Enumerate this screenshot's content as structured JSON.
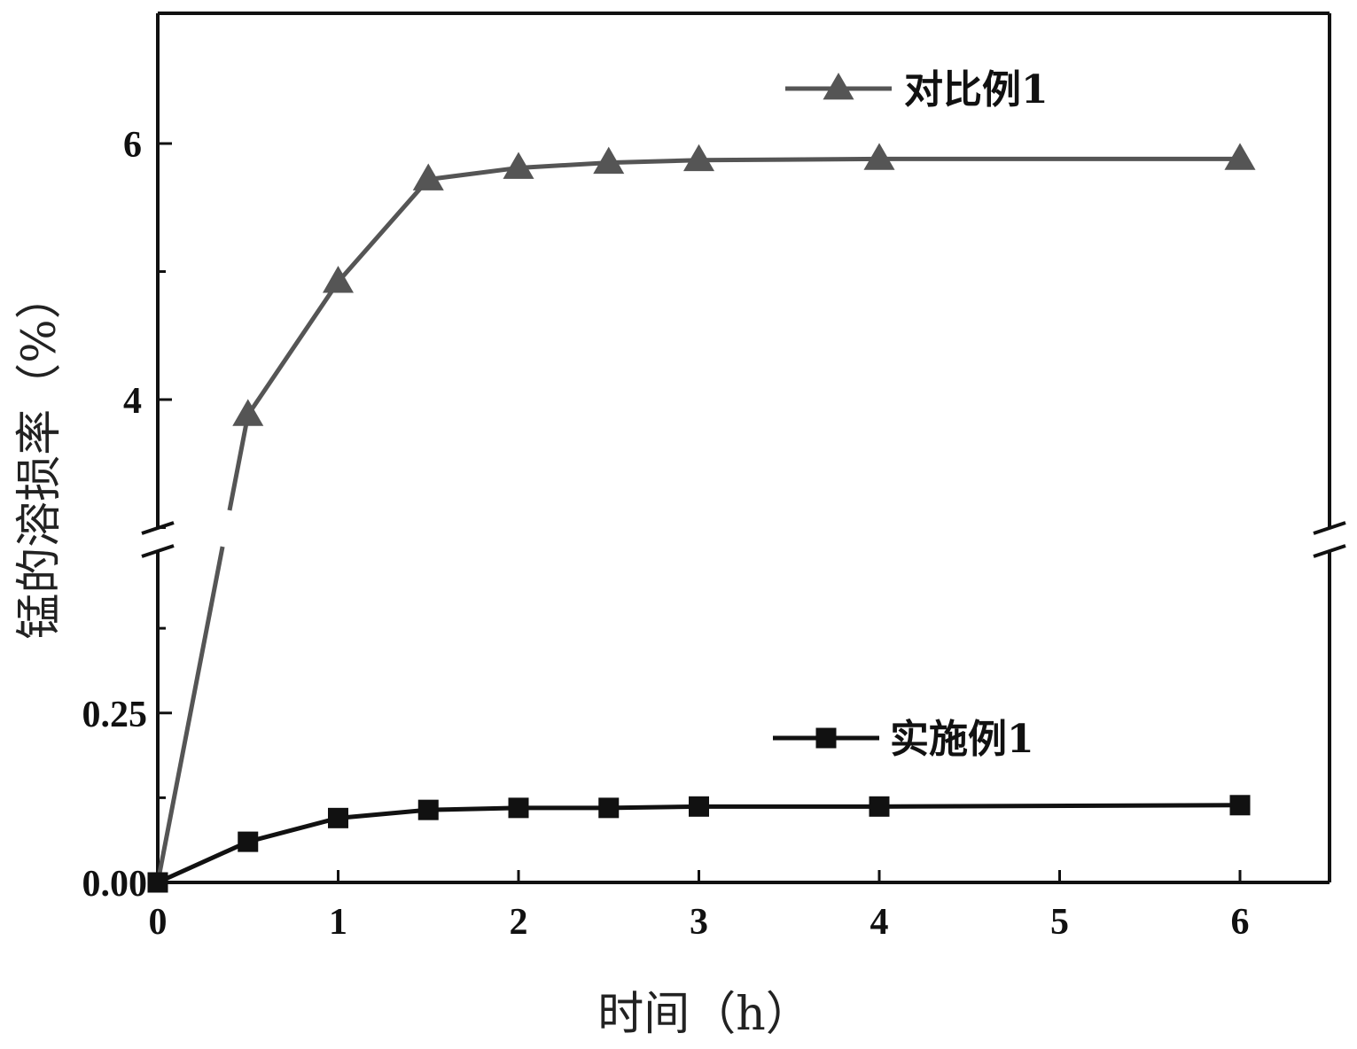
{
  "chart_data": {
    "type": "line",
    "title": "",
    "xlabel": "时间（h）",
    "ylabel": "锰的溶损率（%）",
    "x_ticks": [
      "0",
      "1",
      "2",
      "3",
      "4",
      "5",
      "6"
    ],
    "xlim": [
      0,
      6.5
    ],
    "y_axis_break": true,
    "y_lower_range": [
      0,
      0.5
    ],
    "y_upper_range": [
      3,
      7
    ],
    "y_lower_tick_labels": [
      "0.00",
      "0.25"
    ],
    "y_upper_tick_labels": [
      "4",
      "6"
    ],
    "grid": false,
    "series": [
      {
        "name": "对比例1",
        "color": "#555555",
        "marker": "triangle",
        "x": [
          0,
          0.5,
          1,
          1.5,
          2,
          2.5,
          3,
          4,
          6
        ],
        "y": [
          0,
          3.88,
          4.92,
          5.72,
          5.81,
          5.85,
          5.87,
          5.88,
          5.88
        ]
      },
      {
        "name": "实施例1",
        "color": "#111111",
        "marker": "square",
        "x": [
          0,
          0.5,
          1,
          1.5,
          2,
          2.5,
          3,
          4,
          6
        ],
        "y": [
          0,
          0.06,
          0.095,
          0.107,
          0.11,
          0.11,
          0.112,
          0.112,
          0.114
        ]
      }
    ],
    "legend": [
      {
        "label": "对比例1",
        "series": 0
      },
      {
        "label": "实施例1",
        "series": 1
      }
    ]
  }
}
